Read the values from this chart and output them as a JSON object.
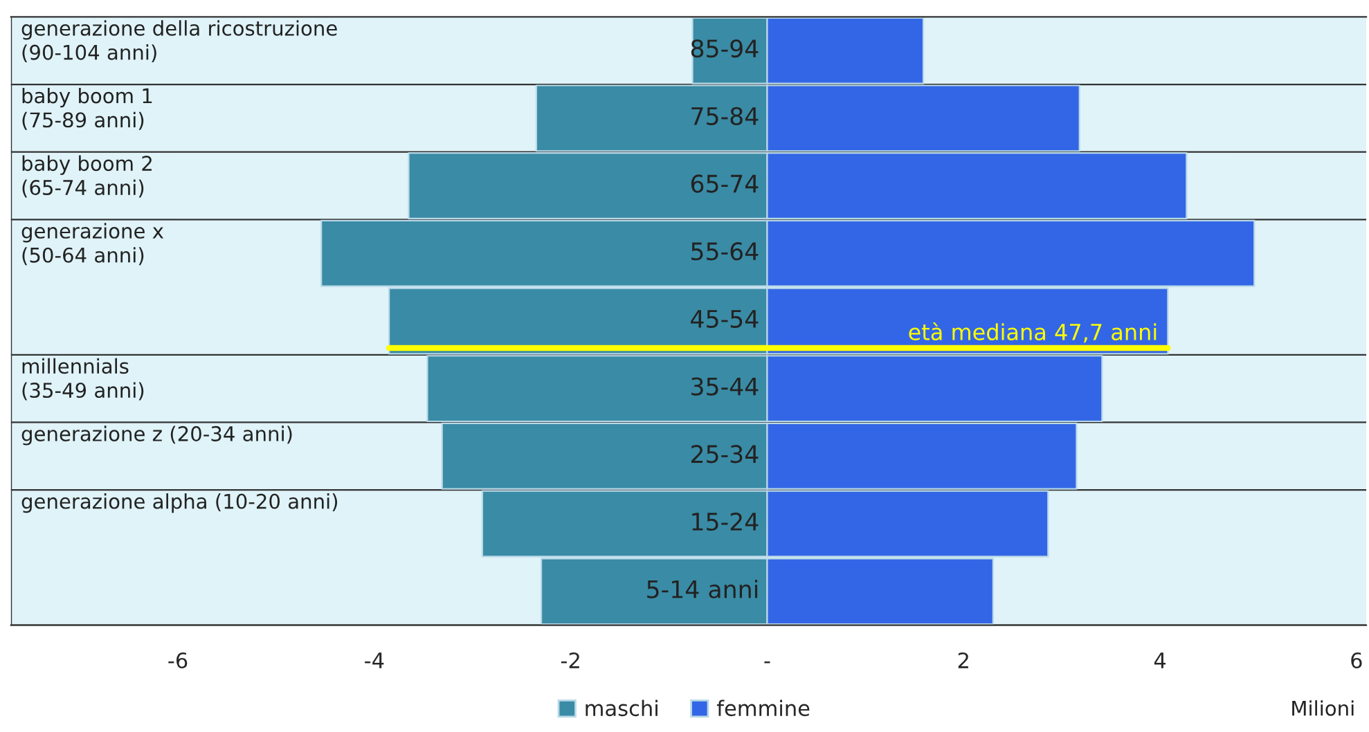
{
  "chart_data": {
    "type": "bar",
    "orientation": "horizontal",
    "stacked": true,
    "xlabel": "Milioni",
    "categories": [
      "85-94",
      "75-84",
      "65-74",
      "55-64",
      "45-54",
      "35-44",
      "25-34",
      "15-24",
      "5-14 anni"
    ],
    "series": [
      {
        "name": "maschi",
        "color": "#3a8ba5",
        "values": [
          -0.76,
          -2.35,
          -3.65,
          -4.54,
          -3.85,
          -3.46,
          -3.31,
          -2.9,
          -2.3
        ]
      },
      {
        "name": "femmine",
        "color": "#3366e6",
        "values": [
          1.59,
          3.18,
          4.27,
          4.96,
          4.08,
          3.41,
          3.15,
          2.86,
          2.3
        ]
      }
    ],
    "xlim": [
      -7.7,
      6.1
    ],
    "xticks": [
      -6,
      -4,
      -2,
      {
        "value": 0,
        "label": "-"
      },
      2,
      4,
      6
    ],
    "bands": [
      {
        "axis": "y",
        "from": "85-94",
        "to": "85-94",
        "label": "generazione della ricostruzione\n(90-104 anni)",
        "color": "#dff3f8"
      },
      {
        "axis": "y",
        "from": "75-84",
        "to": "75-84",
        "label": "baby boom 1\n(75-89 anni)",
        "color": "#dff3f8"
      },
      {
        "axis": "y",
        "from": "65-74",
        "to": "65-74",
        "label": "baby boom 2\n(65-74 anni)",
        "color": "#dff3f8"
      },
      {
        "axis": "y",
        "from": "55-64",
        "to": "45-54",
        "label": "generazione x\n(50-64 anni)",
        "color": "#dff3f8"
      },
      {
        "axis": "y",
        "from": "35-44",
        "to": "35-44",
        "label": "millennials\n(35-49 anni)",
        "color": "#dff3f8"
      },
      {
        "axis": "y",
        "from": "25-34",
        "to": "25-34",
        "label": "generazione z (20-34 anni)",
        "color": "#dff3f8"
      },
      {
        "axis": "y",
        "from": "15-24",
        "to": "5-14 anni",
        "label": "generazione alpha (10-20 anni)",
        "color": "#dff3f8"
      }
    ],
    "ref_lines": [
      {
        "axis": "y",
        "value": "45-54",
        "label": "età mediana 47,7 anni",
        "color": "#ffff00"
      }
    ],
    "legend": "bottom",
    "grid": false
  }
}
